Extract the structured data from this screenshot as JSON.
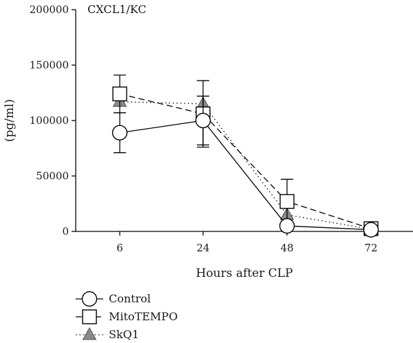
{
  "chart_data": {
    "type": "line",
    "title": "CXCL1/KC",
    "xlabel": "Hours after CLP",
    "ylabel": "(pg/ml)",
    "categories": [
      "6",
      "24",
      "48",
      "72"
    ],
    "ylim": [
      0,
      200000
    ],
    "yticks": [
      0,
      50000,
      100000,
      150000,
      200000
    ],
    "ytick_labels": [
      "0",
      "50000",
      "100000",
      "150000",
      "200000"
    ],
    "grid": false,
    "legend_position": "bottom-left",
    "series": [
      {
        "name": "Control",
        "marker": "circle-open",
        "line_style": "solid",
        "color": "#000000",
        "values": [
          89000,
          100000,
          5000,
          1500
        ],
        "error": [
          18000,
          22000,
          0,
          0
        ]
      },
      {
        "name": "MitoTEMPO",
        "marker": "square-open",
        "line_style": "dashed",
        "color": "#000000",
        "values": [
          124000,
          106000,
          27000,
          2500
        ],
        "error": [
          17000,
          30000,
          20000,
          0
        ]
      },
      {
        "name": "SkQ1",
        "marker": "triangle-filled",
        "line_style": "dotted",
        "color": "#7a7a7a",
        "values": [
          117000,
          115000,
          15000,
          2000
        ],
        "error": [
          0,
          0,
          0,
          0
        ]
      }
    ]
  }
}
